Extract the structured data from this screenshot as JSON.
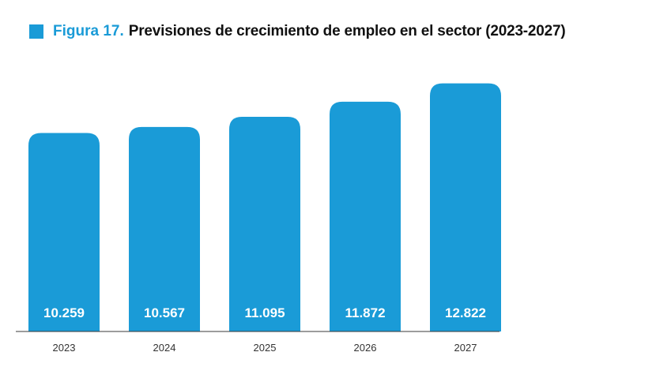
{
  "figure": {
    "label": "Figura 17.",
    "title": "Previsiones de crecimiento de empleo en el sector (2023-2027)"
  },
  "colors": {
    "accent": "#1a9bd7",
    "bar": "#1a9bd7",
    "axis": "#3a3a3a"
  },
  "chart_data": {
    "type": "bar",
    "title": "Previsiones de crecimiento de empleo en el sector (2023-2027)",
    "categories": [
      "2023",
      "2024",
      "2025",
      "2026",
      "2027"
    ],
    "values": [
      10259,
      10567,
      11095,
      11872,
      12822
    ],
    "value_labels": [
      "10.259",
      "10.567",
      "11.095",
      "11.872",
      "12.822"
    ],
    "xlabel": "",
    "ylabel": "",
    "ylim": [
      0,
      14000
    ],
    "grid": false,
    "legend": "none"
  }
}
